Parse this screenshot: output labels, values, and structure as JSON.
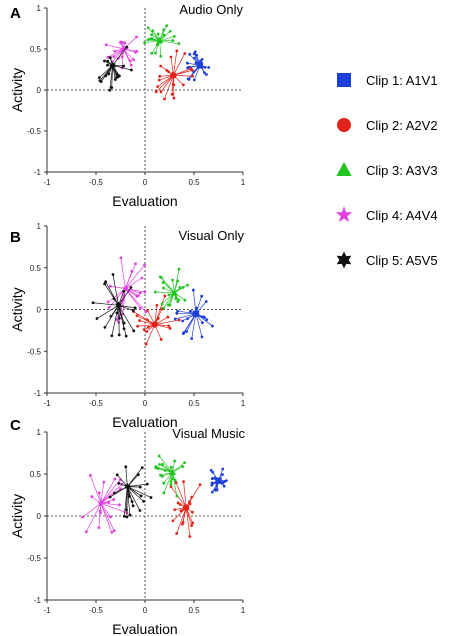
{
  "colors": {
    "clip1": "#1f3fd6",
    "clip2": "#e2231a",
    "clip3": "#22c422",
    "clip4": "#e040e0",
    "clip5": "#111111"
  },
  "legend": [
    {
      "label": "Clip 1: A1V1",
      "marker": "square",
      "color_key": "clip1"
    },
    {
      "label": "Clip 2: A2V2",
      "marker": "circle",
      "color_key": "clip2"
    },
    {
      "label": "Clip 3: A3V3",
      "marker": "triangle",
      "color_key": "clip3"
    },
    {
      "label": "Clip 4: A4V4",
      "marker": "star",
      "color_key": "clip4"
    },
    {
      "label": "Clip 5: A5V5",
      "marker": "hexagram",
      "color_key": "clip5"
    }
  ],
  "chart_data": [
    {
      "type": "scatter",
      "panel": "A",
      "title": "Audio Only",
      "xlabel": "Evaluation",
      "ylabel": "Activity",
      "xlim": [
        -1,
        1
      ],
      "ylim": [
        -1,
        1
      ],
      "xticks": [
        "-1",
        "-0.5",
        "0",
        "0.5",
        "1"
      ],
      "yticks": [
        "1",
        "0.5",
        "0",
        "-0.5",
        "-1"
      ],
      "series": [
        {
          "name": "Clip 1: A1V1",
          "color_key": "clip1",
          "center": [
            0.56,
            0.3
          ],
          "spread": 0.17,
          "n": 20
        },
        {
          "name": "Clip 2: A2V2",
          "color_key": "clip2",
          "center": [
            0.29,
            0.18
          ],
          "spread": 0.23,
          "n": 20
        },
        {
          "name": "Clip 3: A3V3",
          "color_key": "clip3",
          "center": [
            0.15,
            0.6
          ],
          "spread": 0.2,
          "n": 20
        },
        {
          "name": "Clip 4: A4V4",
          "color_key": "clip4",
          "center": [
            -0.22,
            0.5
          ],
          "spread": 0.18,
          "n": 20
        },
        {
          "name": "Clip 5: A5V5",
          "color_key": "clip5",
          "center": [
            -0.33,
            0.3
          ],
          "spread": 0.22,
          "n": 20
        }
      ]
    },
    {
      "type": "scatter",
      "panel": "B",
      "title": "Visual Only",
      "xlabel": "Evaluation",
      "ylabel": "Activity",
      "xlim": [
        -1,
        1
      ],
      "ylim": [
        -1,
        1
      ],
      "xticks": [
        "-1",
        "-0.5",
        "0",
        "0.5",
        "1"
      ],
      "yticks": [
        "1",
        "0.5",
        "0",
        "-0.5",
        "-1"
      ],
      "series": [
        {
          "name": "Clip 1: A1V1",
          "color_key": "clip1",
          "center": [
            0.52,
            -0.05
          ],
          "spread": 0.22,
          "n": 20
        },
        {
          "name": "Clip 2: A2V2",
          "color_key": "clip2",
          "center": [
            0.1,
            -0.18
          ],
          "spread": 0.28,
          "n": 20
        },
        {
          "name": "Clip 3: A3V3",
          "color_key": "clip3",
          "center": [
            0.3,
            0.2
          ],
          "spread": 0.22,
          "n": 20
        },
        {
          "name": "Clip 4: A4V4",
          "color_key": "clip4",
          "center": [
            -0.2,
            0.25
          ],
          "spread": 0.3,
          "n": 20
        },
        {
          "name": "Clip 5: A5V5",
          "color_key": "clip5",
          "center": [
            -0.27,
            0.05
          ],
          "spread": 0.3,
          "n": 20
        }
      ]
    },
    {
      "type": "scatter",
      "panel": "C",
      "title": "Visual Music",
      "xlabel": "Evaluation",
      "ylabel": "Activity",
      "xlim": [
        -1,
        1
      ],
      "ylim": [
        -1,
        1
      ],
      "xticks": [
        "-1",
        "-0.5",
        "0",
        "0.5",
        "1"
      ],
      "yticks": [
        "1",
        "0.5",
        "0",
        "-0.5",
        "-1"
      ],
      "series": [
        {
          "name": "Clip 1: A1V1",
          "color_key": "clip1",
          "center": [
            0.75,
            0.42
          ],
          "spread": 0.13,
          "n": 20
        },
        {
          "name": "Clip 2: A2V2",
          "color_key": "clip2",
          "center": [
            0.42,
            0.1
          ],
          "spread": 0.25,
          "n": 20
        },
        {
          "name": "Clip 3: A3V3",
          "color_key": "clip3",
          "center": [
            0.28,
            0.52
          ],
          "spread": 0.22,
          "n": 20
        },
        {
          "name": "Clip 4: A4V4",
          "color_key": "clip4",
          "center": [
            -0.45,
            0.15
          ],
          "spread": 0.3,
          "n": 20
        },
        {
          "name": "Clip 5: A5V5",
          "color_key": "clip5",
          "center": [
            -0.18,
            0.35
          ],
          "spread": 0.3,
          "n": 20
        }
      ]
    }
  ]
}
